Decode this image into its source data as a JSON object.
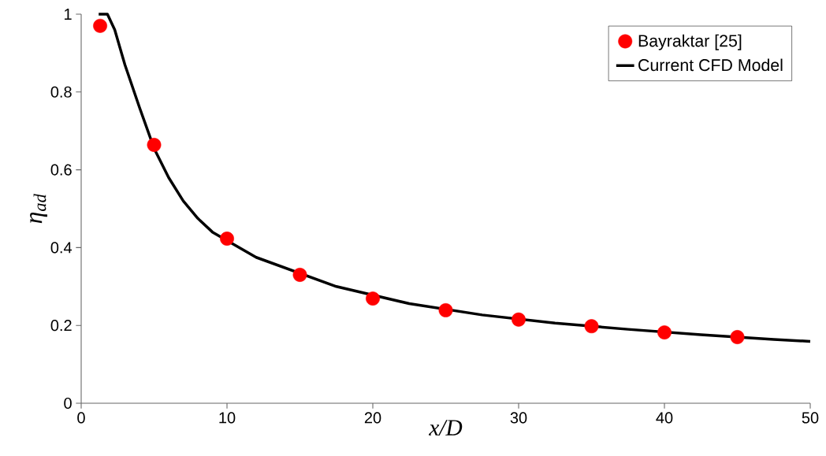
{
  "chart_data": {
    "type": "line",
    "xlabel": "*x/D*",
    "ylabel": "η$_{ad}$",
    "legend": "top right",
    "grid": false,
    "xlim": [
      0,
      50
    ],
    "ylim": [
      0,
      1
    ],
    "xticks": [
      0,
      10,
      20,
      30,
      40,
      50
    ],
    "yticks": [
      0,
      {
        "value": 0.2,
        "label": "0.2"
      },
      {
        "value": 0.4,
        "label": "0.4"
      },
      {
        "value": 0.6,
        "label": "0.6"
      },
      {
        "value": 0.8,
        "label": "0.8"
      },
      1
    ],
    "series": [
      {
        "name": "Bayraktar [25]",
        "type": "scatter",
        "marker": "circle",
        "color": "#ff0000",
        "x": [
          1.3,
          5,
          10,
          15,
          20,
          25,
          30,
          35,
          40,
          45
        ],
        "values": [
          0.97,
          0.664,
          0.423,
          0.33,
          0.269,
          0.239,
          0.215,
          0.198,
          0.182,
          0.17
        ]
      },
      {
        "name": "Current CFD Model",
        "marker": "none",
        "line_style": "solid",
        "color": "#000000",
        "x": [
          1.2,
          1.8,
          2.3,
          3,
          4,
          5,
          6,
          7,
          8,
          9,
          12,
          17.5,
          22.5,
          27.5,
          32.5,
          37.5,
          42.5,
          47.5,
          50
        ],
        "values": [
          1.0,
          1.0,
          0.96,
          0.87,
          0.76,
          0.655,
          0.58,
          0.52,
          0.475,
          0.44,
          0.375,
          0.3,
          0.256,
          0.227,
          0.206,
          0.19,
          0.176,
          0.164,
          0.159
        ]
      }
    ]
  }
}
